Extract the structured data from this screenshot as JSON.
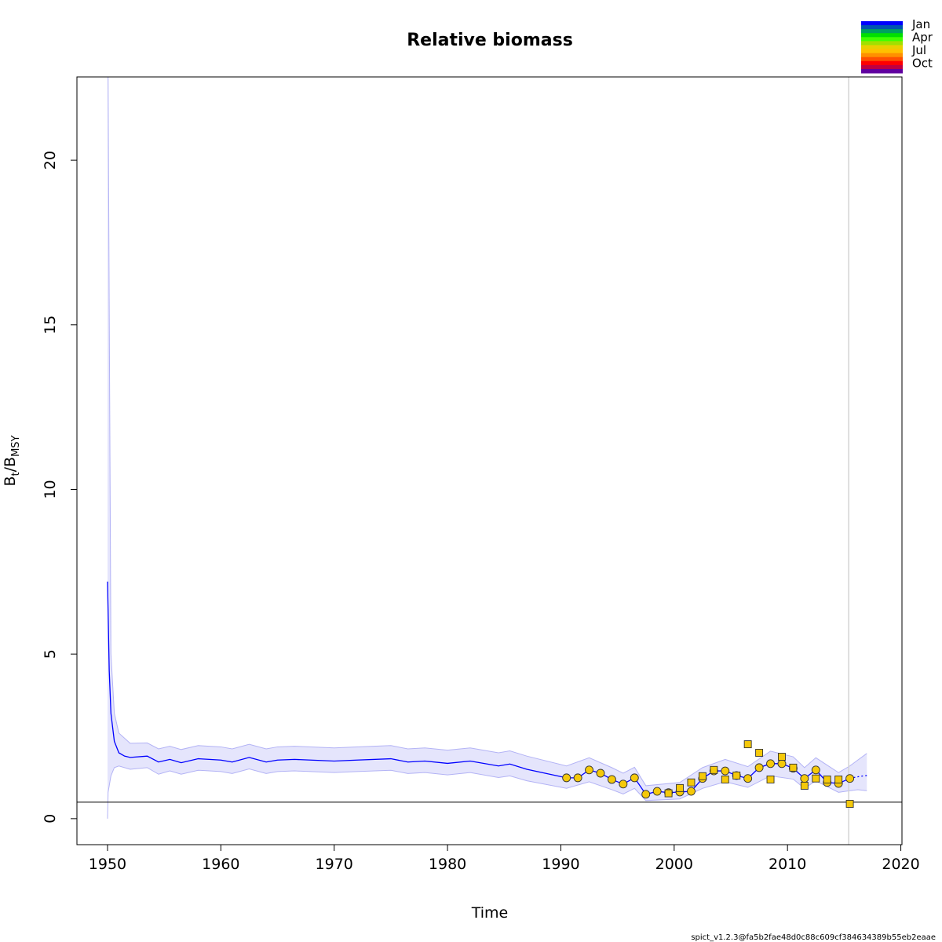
{
  "chart_data": {
    "type": "line",
    "title": "Relative biomass",
    "xlabel": "Time",
    "ylabel_main": "B",
    "ylabel_sub1": "t",
    "ylabel_sep": "/B",
    "ylabel_sub2": "MSY",
    "xlim": [
      1947.3,
      2020.1
    ],
    "ylim": [
      -0.79,
      22.53
    ],
    "x_ticks": [
      1950,
      1960,
      1970,
      1980,
      1990,
      2000,
      2010,
      2020
    ],
    "y_ticks": [
      0,
      5,
      10,
      15,
      20
    ],
    "grid": false,
    "reference_hline": 0.5,
    "reference_vline": 2015.4,
    "estimate": {
      "x": [
        1950,
        1950.15,
        1950.3,
        1950.6,
        1951,
        1951.5,
        1952,
        1953.5,
        1954.5,
        1955.5,
        1956.5,
        1958,
        1960,
        1961,
        1962.5,
        1964,
        1965,
        1966.5,
        1970,
        1972,
        1975,
        1976.5,
        1978,
        1980,
        1982,
        1984.5,
        1985.5,
        1987,
        1990.5,
        1991.5,
        1992.5,
        1993.5,
        1994.5,
        1995.5,
        1996.5,
        1997.5,
        1998.5,
        1999.5,
        2000.5,
        2001.5,
        2002.5,
        2003.5,
        2004.5,
        2005.5,
        2006.5,
        2007.5,
        2008.5,
        2009.5,
        2010.5,
        2011.5,
        2012.5,
        2013.5,
        2014.5,
        2015.5
      ],
      "y": [
        7.2,
        4.5,
        3.2,
        2.35,
        2.0,
        1.9,
        1.86,
        1.9,
        1.72,
        1.8,
        1.7,
        1.82,
        1.78,
        1.72,
        1.86,
        1.72,
        1.78,
        1.8,
        1.75,
        1.78,
        1.82,
        1.72,
        1.75,
        1.68,
        1.75,
        1.6,
        1.66,
        1.5,
        1.24,
        1.24,
        1.48,
        1.38,
        1.19,
        1.05,
        1.24,
        0.74,
        0.83,
        0.79,
        0.81,
        0.83,
        1.22,
        1.45,
        1.45,
        1.31,
        1.22,
        1.55,
        1.67,
        1.67,
        1.53,
        1.22,
        1.48,
        1.1,
        1.07,
        1.22
      ]
    },
    "forecast": {
      "x": [
        2015.5,
        2016,
        2016.5,
        2017
      ],
      "y": [
        1.22,
        1.26,
        1.29,
        1.31
      ]
    },
    "ci": {
      "x": [
        1950,
        1950.05,
        1950.3,
        1950.6,
        1951,
        1952,
        1953.5,
        1954.5,
        1955.5,
        1956.5,
        1958,
        1960,
        1961,
        1962.5,
        1964,
        1965,
        1966.5,
        1970,
        1972,
        1975,
        1976.5,
        1978,
        1980,
        1982,
        1984.5,
        1985.5,
        1987,
        1990.5,
        1992.5,
        1994.5,
        1995.5,
        1996.5,
        1997.5,
        2000.5,
        2002.5,
        2004.5,
        2006.5,
        2008.5,
        2010.5,
        2011.5,
        2012.5,
        2014.5,
        2015.5,
        2016.2,
        2017
      ],
      "lower": [
        0,
        0.8,
        1.3,
        1.55,
        1.6,
        1.5,
        1.55,
        1.35,
        1.45,
        1.35,
        1.47,
        1.43,
        1.37,
        1.51,
        1.37,
        1.43,
        1.45,
        1.4,
        1.43,
        1.47,
        1.37,
        1.4,
        1.33,
        1.4,
        1.25,
        1.3,
        1.15,
        0.92,
        1.12,
        0.88,
        0.75,
        0.92,
        0.55,
        0.6,
        0.92,
        1.12,
        0.95,
        1.3,
        1.2,
        0.92,
        1.15,
        0.8,
        0.85,
        0.88,
        0.85
      ],
      "upper": [
        22.53,
        22.53,
        5.0,
        3.2,
        2.6,
        2.29,
        2.3,
        2.12,
        2.2,
        2.1,
        2.22,
        2.18,
        2.12,
        2.26,
        2.12,
        2.18,
        2.2,
        2.15,
        2.18,
        2.22,
        2.12,
        2.15,
        2.08,
        2.15,
        2.0,
        2.06,
        1.9,
        1.6,
        1.85,
        1.55,
        1.38,
        1.56,
        1.0,
        1.1,
        1.55,
        1.8,
        1.58,
        2.05,
        1.88,
        1.55,
        1.85,
        1.4,
        1.6,
        1.78,
        1.98
      ]
    },
    "index1_circles": {
      "x": [
        1990.5,
        1991.5,
        1992.5,
        1993.5,
        1994.5,
        1995.5,
        1996.5,
        1997.5,
        1998.5,
        1999.5,
        2000.5,
        2001.5,
        2002.5,
        2003.5,
        2004.5,
        2005.5,
        2006.5,
        2007.5,
        2008.5,
        2009.5,
        2010.5,
        2011.5,
        2012.5,
        2013.5,
        2014.5,
        2015.5
      ],
      "y": [
        1.24,
        1.24,
        1.48,
        1.38,
        1.19,
        1.05,
        1.24,
        0.74,
        0.83,
        0.79,
        0.81,
        0.83,
        1.22,
        1.45,
        1.45,
        1.31,
        1.22,
        1.55,
        1.67,
        1.67,
        1.53,
        1.22,
        1.48,
        1.1,
        1.07,
        1.22
      ]
    },
    "index2_squares": {
      "x": [
        1999.5,
        2000.5,
        2001.5,
        2002.5,
        2003.5,
        2004.5,
        2005.5,
        2006.5,
        2007.5,
        2008.5,
        2009.5,
        2010.5,
        2011.5,
        2012.5,
        2013.5,
        2014.5,
        2015.5
      ],
      "y": [
        0.77,
        0.93,
        1.1,
        1.29,
        1.48,
        1.19,
        1.31,
        2.26,
        2.0,
        1.19,
        1.88,
        1.55,
        1.0,
        1.22,
        1.19,
        1.19,
        0.45
      ]
    },
    "colors": {
      "estimate": "#0000ff",
      "ci_fill": "#e5e5fc",
      "ci_border": "#b3b3f5",
      "point_fill": "#f5c90a",
      "vline": "#d3d3d3"
    },
    "legend": {
      "placement": "top-right-outside",
      "labels": [
        "Jan",
        "Apr",
        "Jul",
        "Oct"
      ],
      "colors": [
        "#0000ff",
        "#0055b0",
        "#00a060",
        "#00e000",
        "#40ff00",
        "#a0e000",
        "#e8d000",
        "#ffc000",
        "#ff9000",
        "#ff5000",
        "#ff0000",
        "#c00040",
        "#6000a0"
      ]
    }
  },
  "footer": "spict_v1.2.3@fa5b2fae48d0c88c609cf384634389b55eb2eaae"
}
